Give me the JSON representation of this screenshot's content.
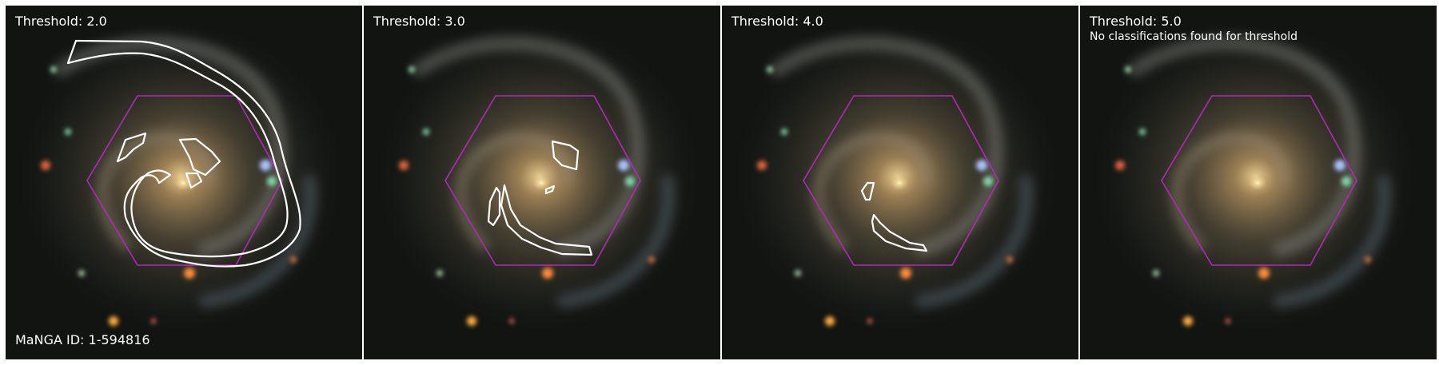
{
  "panels": [
    {
      "threshold_label": "Threshold: 2.0",
      "note": "",
      "id_label": "MaNGA ID: 1-594816"
    },
    {
      "threshold_label": "Threshold: 3.0",
      "note": "",
      "id_label": ""
    },
    {
      "threshold_label": "Threshold: 4.0",
      "note": "",
      "id_label": ""
    },
    {
      "threshold_label": "Threshold: 5.0",
      "note": "No classifications found for threshold",
      "id_label": ""
    }
  ],
  "colors": {
    "hexagon": "#b02ab8",
    "contour": "#ffffff",
    "label_text": "#ffffff",
    "background_sky": "#0d0f0d",
    "galaxy_core": "#f2d79a"
  }
}
